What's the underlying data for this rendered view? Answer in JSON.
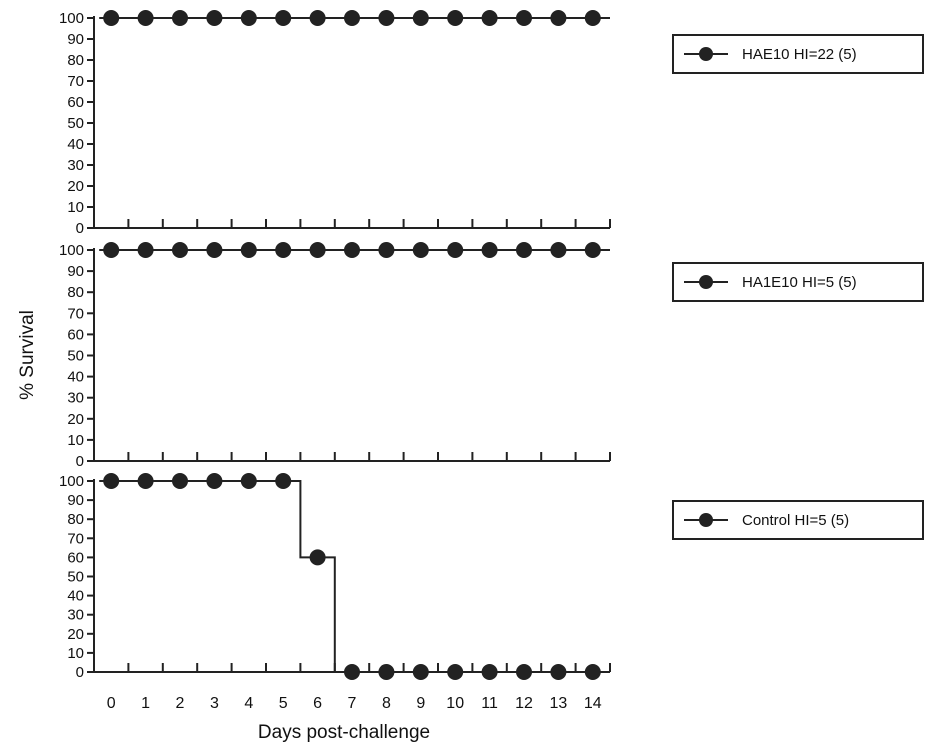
{
  "chart_data": {
    "type": "line",
    "ylabel": "% Survival",
    "xlabel": "Days post-challenge",
    "x": [
      0,
      1,
      2,
      3,
      4,
      5,
      6,
      7,
      8,
      9,
      10,
      11,
      12,
      13,
      14
    ],
    "xlim": [
      -0.5,
      14.5
    ],
    "ylim": [
      0,
      100
    ],
    "yticks": [
      0,
      10,
      20,
      30,
      40,
      50,
      60,
      70,
      80,
      90,
      100
    ],
    "step": true,
    "grid": false,
    "legend_position": "right",
    "panels": [
      {
        "series": [
          {
            "name": "HAE10 HI=22 (5)",
            "values": [
              100,
              100,
              100,
              100,
              100,
              100,
              100,
              100,
              100,
              100,
              100,
              100,
              100,
              100,
              100
            ]
          }
        ]
      },
      {
        "series": [
          {
            "name": "HA1E10 HI=5 (5)",
            "values": [
              100,
              100,
              100,
              100,
              100,
              100,
              100,
              100,
              100,
              100,
              100,
              100,
              100,
              100,
              100
            ]
          }
        ]
      },
      {
        "series": [
          {
            "name": "Control HI=5 (5)",
            "values": [
              100,
              100,
              100,
              100,
              100,
              100,
              60,
              0,
              0,
              0,
              0,
              0,
              0,
              0,
              0
            ]
          }
        ]
      }
    ]
  },
  "colors": {
    "line": "#222222",
    "marker": "#222222"
  }
}
